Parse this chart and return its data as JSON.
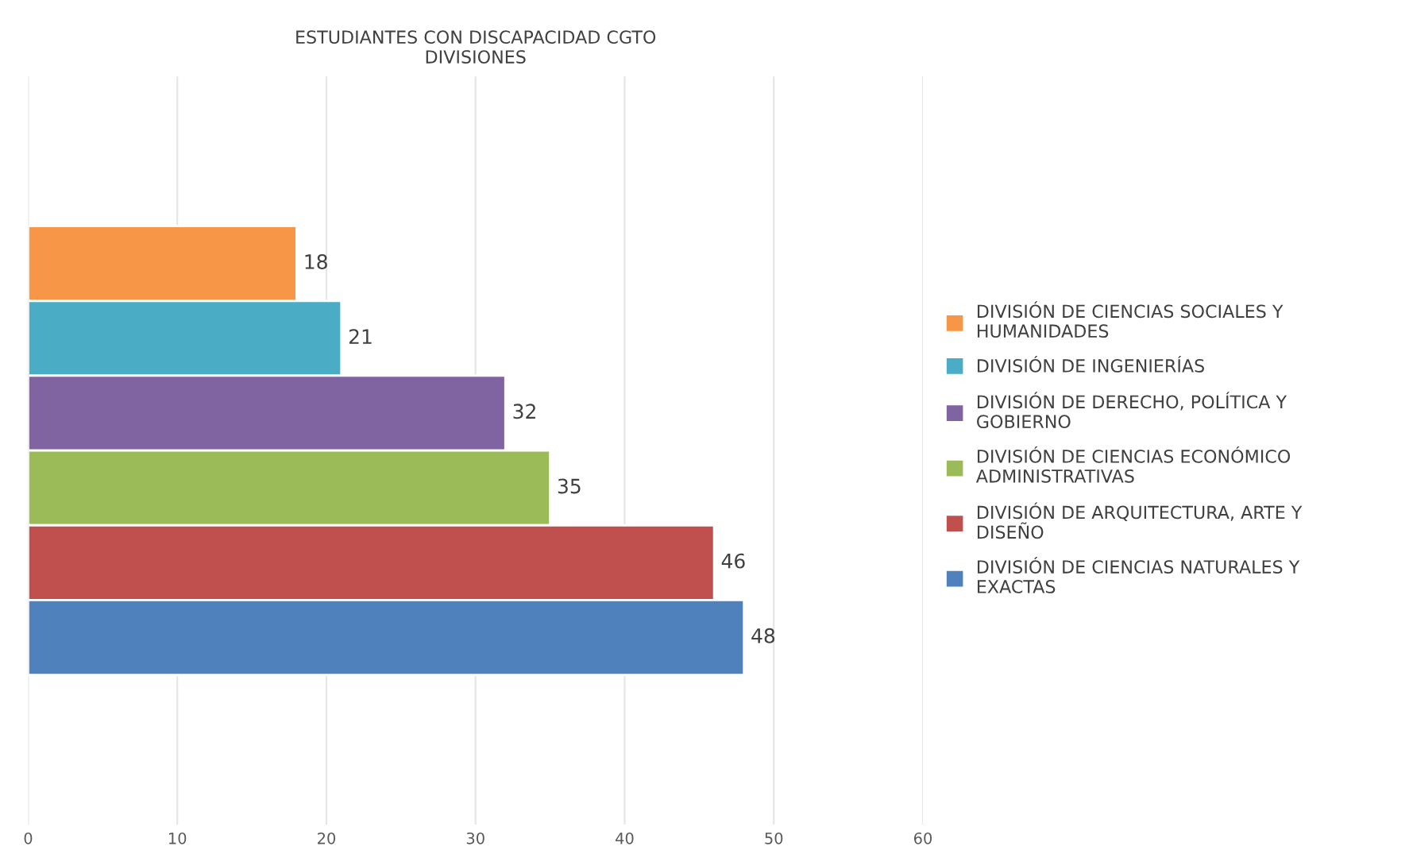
{
  "chart_data": {
    "type": "bar",
    "orientation": "horizontal",
    "title": "ESTUDIANTES CON DISCAPACIDAD CGTO\nDIVISIONES",
    "categories": [
      null
    ],
    "series": [
      {
        "name": "DIVISIÓN DE CIENCIAS SOCIALES Y HUMANIDADES",
        "color": "#f79646",
        "values": [
          18
        ]
      },
      {
        "name": "DIVISIÓN DE INGENIERÍAS",
        "color": "#4bacc6",
        "values": [
          21
        ]
      },
      {
        "name": "DIVISIÓN DE DERECHO, POLÍTICA Y GOBIERNO",
        "color": "#8064a2",
        "values": [
          32
        ]
      },
      {
        "name": "DIVISIÓN DE CIENCIAS ECONÓMICO ADMINISTRATIVAS",
        "color": "#9bbb59",
        "values": [
          35
        ]
      },
      {
        "name": "DIVISIÓN DE ARQUITECTURA, ARTE Y DISEÑO",
        "color": "#c0504d",
        "values": [
          46
        ]
      },
      {
        "name": "DIVISIÓN DE CIENCIAS NATURALES Y EXACTAS",
        "color": "#4f81bd",
        "values": [
          48
        ]
      }
    ],
    "xlim": [
      0,
      60
    ],
    "xticks": [
      0,
      10,
      20,
      30,
      40,
      50,
      60
    ],
    "grid": "x",
    "legend": "right",
    "data_labels": true
  }
}
